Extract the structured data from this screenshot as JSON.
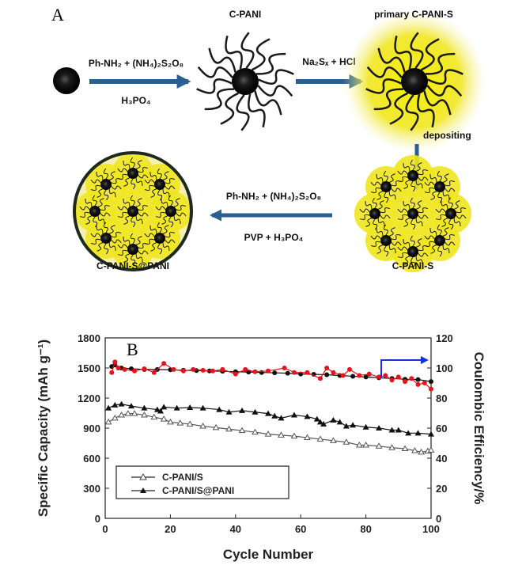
{
  "panel_a": {
    "label": "A",
    "stages": {
      "c_pani": "C-PANI",
      "primary": "primary C-PANI-S",
      "c_pani_s": "C-PANI-S",
      "final": "C-PANI-S@PANI"
    },
    "steps": {
      "step1_top": "Ph-NH₂ + (NH₄)₂S₂O₈",
      "step1_bottom": "H₃PO₄",
      "step2_top": "Na₂Sₓ + HCl",
      "step3": "depositing",
      "step4_top": "Ph-NH₂ + (NH₄)₂S₂O₈",
      "step4_bottom": "PVP + H₃PO₄"
    },
    "colors": {
      "arrow": "#2a5f93",
      "sulfur_glow": "#f2e600",
      "particle": "#111111"
    }
  },
  "chart_data": {
    "panel_label": "B",
    "type": "scatter",
    "xlabel": "Cycle Number",
    "ylabel": "Specific Capacity (mAh g⁻¹)",
    "y2label": "Coulombic Efficiency/%",
    "xlim": [
      0,
      100
    ],
    "ylim": [
      0,
      1800
    ],
    "y2lim": [
      0,
      120
    ],
    "xticks": [
      "0",
      "20",
      "40",
      "60",
      "80",
      "100"
    ],
    "yticks": [
      "0",
      "300",
      "600",
      "900",
      "1200",
      "1500",
      "1800"
    ],
    "y2ticks": [
      "0",
      "20",
      "40",
      "60",
      "80",
      "100",
      "120"
    ],
    "legend": {
      "position": "lower-left",
      "entries": [
        "C-PANI/S",
        "C-PANI/S@PANI"
      ]
    },
    "series": [
      {
        "name": "C-PANI/S",
        "axis": "left",
        "marker": "open-triangle",
        "color": "#555555",
        "x": [
          1,
          3,
          5,
          7,
          9,
          12,
          15,
          18,
          20,
          23,
          26,
          30,
          34,
          38,
          42,
          46,
          50,
          54,
          58,
          62,
          66,
          70,
          74,
          78,
          80,
          84,
          88,
          92,
          95,
          97,
          99,
          100
        ],
        "y": [
          960,
          1000,
          1030,
          1045,
          1045,
          1030,
          1010,
          990,
          960,
          950,
          940,
          920,
          905,
          890,
          875,
          860,
          840,
          830,
          820,
          805,
          790,
          775,
          760,
          730,
          730,
          720,
          705,
          695,
          675,
          660,
          670,
          680
        ]
      },
      {
        "name": "C-PANI/S@PANI",
        "axis": "left",
        "marker": "filled-triangle",
        "color": "#111111",
        "x": [
          1,
          3,
          5,
          8,
          12,
          16,
          17,
          18,
          22,
          26,
          30,
          35,
          38,
          42,
          46,
          50,
          52,
          54,
          58,
          62,
          65,
          66,
          67,
          70,
          72,
          74,
          76,
          80,
          84,
          88,
          90,
          93,
          96,
          100
        ],
        "y": [
          1100,
          1130,
          1140,
          1120,
          1100,
          1085,
          1070,
          1110,
          1100,
          1105,
          1100,
          1085,
          1060,
          1075,
          1060,
          1045,
          1020,
          1000,
          1030,
          1015,
          990,
          960,
          940,
          980,
          960,
          920,
          930,
          910,
          900,
          880,
          880,
          850,
          850,
          840
        ]
      },
      {
        "axis": "right",
        "marker": "filled-circle",
        "color": "#111111",
        "x": [
          2,
          3,
          5,
          8,
          12,
          16,
          20,
          24,
          28,
          32,
          36,
          40,
          44,
          48,
          52,
          56,
          60,
          64,
          68,
          72,
          76,
          80,
          84,
          88,
          92,
          96,
          100
        ],
        "y": [
          101,
          102,
          100,
          99.5,
          99,
          99,
          98.8,
          98.5,
          98.3,
          98,
          97.8,
          97.5,
          97.3,
          97,
          96.8,
          96.5,
          96,
          95.8,
          95.5,
          95,
          94.5,
          94,
          93.5,
          93,
          92.5,
          92.3,
          91
        ]
      },
      {
        "axis": "right",
        "marker": "filled-circle",
        "color": "#e8121a",
        "x": [
          2,
          3,
          4,
          6,
          9,
          12,
          15,
          18,
          21,
          24,
          27,
          30,
          33,
          36,
          40,
          43,
          46,
          50,
          55,
          58,
          62,
          66,
          68,
          70,
          73,
          75,
          78,
          81,
          84,
          86,
          88,
          90,
          92,
          94,
          96,
          98,
          100
        ],
        "y": [
          97,
          104,
          100,
          99,
          98,
          99.5,
          97,
          103,
          99,
          98,
          99,
          98.5,
          98,
          99,
          96,
          99,
          97.5,
          98,
          100,
          97,
          97,
          93,
          100,
          97,
          95,
          99,
          95,
          96,
          94,
          95,
          92,
          94,
          91,
          93,
          89,
          90,
          86
        ]
      }
    ],
    "annotation": {
      "type": "arrow",
      "points_to": "right-axis",
      "color": "#1530e0"
    }
  }
}
